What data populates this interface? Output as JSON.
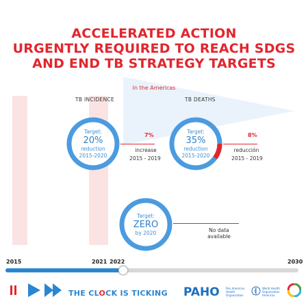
{
  "title": {
    "line1": "ACCELERATED ACTION",
    "line2": "URGENTLY REQUIRED TO REACH SDGS",
    "line3": "AND END TB STRATEGY TARGETS"
  },
  "subtitle": "In the Americas",
  "incidence": {
    "heading": "TB INCIDENCE",
    "target_label": "Target:",
    "target_value": "20%",
    "target_desc": "reduction",
    "target_period": "2015-2020",
    "actual_value": "7%",
    "actual_desc": "increase",
    "actual_period": "2015 - 2019",
    "progress_fraction": 0.0
  },
  "deaths": {
    "heading": "TB DEATHS",
    "target_label": "Target:",
    "target_value": "35%",
    "target_desc": "reduction",
    "target_period": "2015-2020",
    "actual_value": "8%",
    "actual_desc": "reducción",
    "actual_period": "2015 - 2019",
    "progress_fraction": 0.229
  },
  "catastrophic": {
    "target_label": "Target:",
    "target_value": "ZERO",
    "target_period": "by 2020",
    "note_line1": "No data",
    "note_line2": "available"
  },
  "timeline": {
    "year_start": "2015",
    "year_now": "2021",
    "year_next": "2022",
    "year_end": "2030",
    "progress_fraction": 0.4
  },
  "footer": {
    "tagline_part1": "THE CL",
    "tagline_o": "O",
    "tagline_part2": "CK IS TICKING",
    "paho": "PAHO",
    "org1_line1": "Pan American",
    "org1_line2": "Health",
    "org1_line3": "Organization",
    "org2_line1": "World Health",
    "org2_line2": "Organization",
    "org2_line3": "Americas"
  },
  "colors": {
    "accent_red": "#e1262d",
    "accent_blue": "#2b86d1",
    "ring_blue": "#4b9be0"
  }
}
